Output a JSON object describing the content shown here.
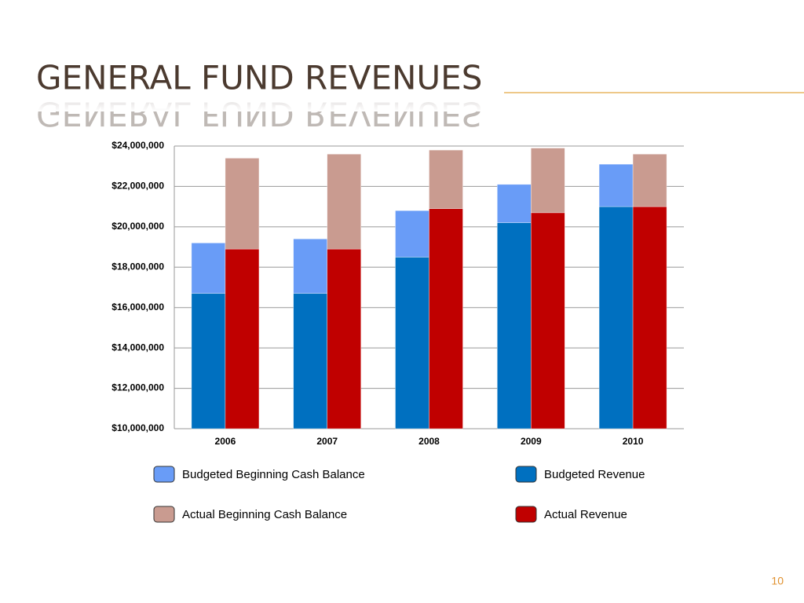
{
  "page": {
    "title": "GENERAL FUND REVENUES",
    "page_number": "10"
  },
  "chart_data": {
    "type": "bar",
    "stacked": true,
    "categories": [
      "2006",
      "2007",
      "2008",
      "2009",
      "2010"
    ],
    "stacks": [
      [
        {
          "name": "Budgeted Beginning Cash Balance",
          "color": "#699cf7",
          "values": [
            2500000,
            2700000,
            2300000,
            1900000,
            2100000
          ]
        },
        {
          "name": "Budgeted Revenue",
          "color": "#0070c0",
          "values": [
            16700000,
            16700000,
            18500000,
            20200000,
            21000000
          ]
        }
      ],
      [
        {
          "name": "Actual Beginning Cash Balance",
          "color": "#c99b90",
          "values": [
            4500000,
            4700000,
            2900000,
            3200000,
            2600000
          ]
        },
        {
          "name": "Actual Revenue",
          "color": "#c00000",
          "values": [
            18900000,
            18900000,
            20900000,
            20700000,
            21000000
          ]
        }
      ]
    ],
    "ylim": [
      10000000,
      24000000
    ],
    "yticks": [
      {
        "value": 10000000,
        "label": "$10,000,000"
      },
      {
        "value": 12000000,
        "label": "$12,000,000"
      },
      {
        "value": 14000000,
        "label": "$14,000,000"
      },
      {
        "value": 16000000,
        "label": "$16,000,000"
      },
      {
        "value": 18000000,
        "label": "$18,000,000"
      },
      {
        "value": 20000000,
        "label": "$20,000,000"
      },
      {
        "value": 22000000,
        "label": "$22,000,000"
      },
      {
        "value": 24000000,
        "label": "$24,000,000"
      }
    ],
    "grid": true
  }
}
